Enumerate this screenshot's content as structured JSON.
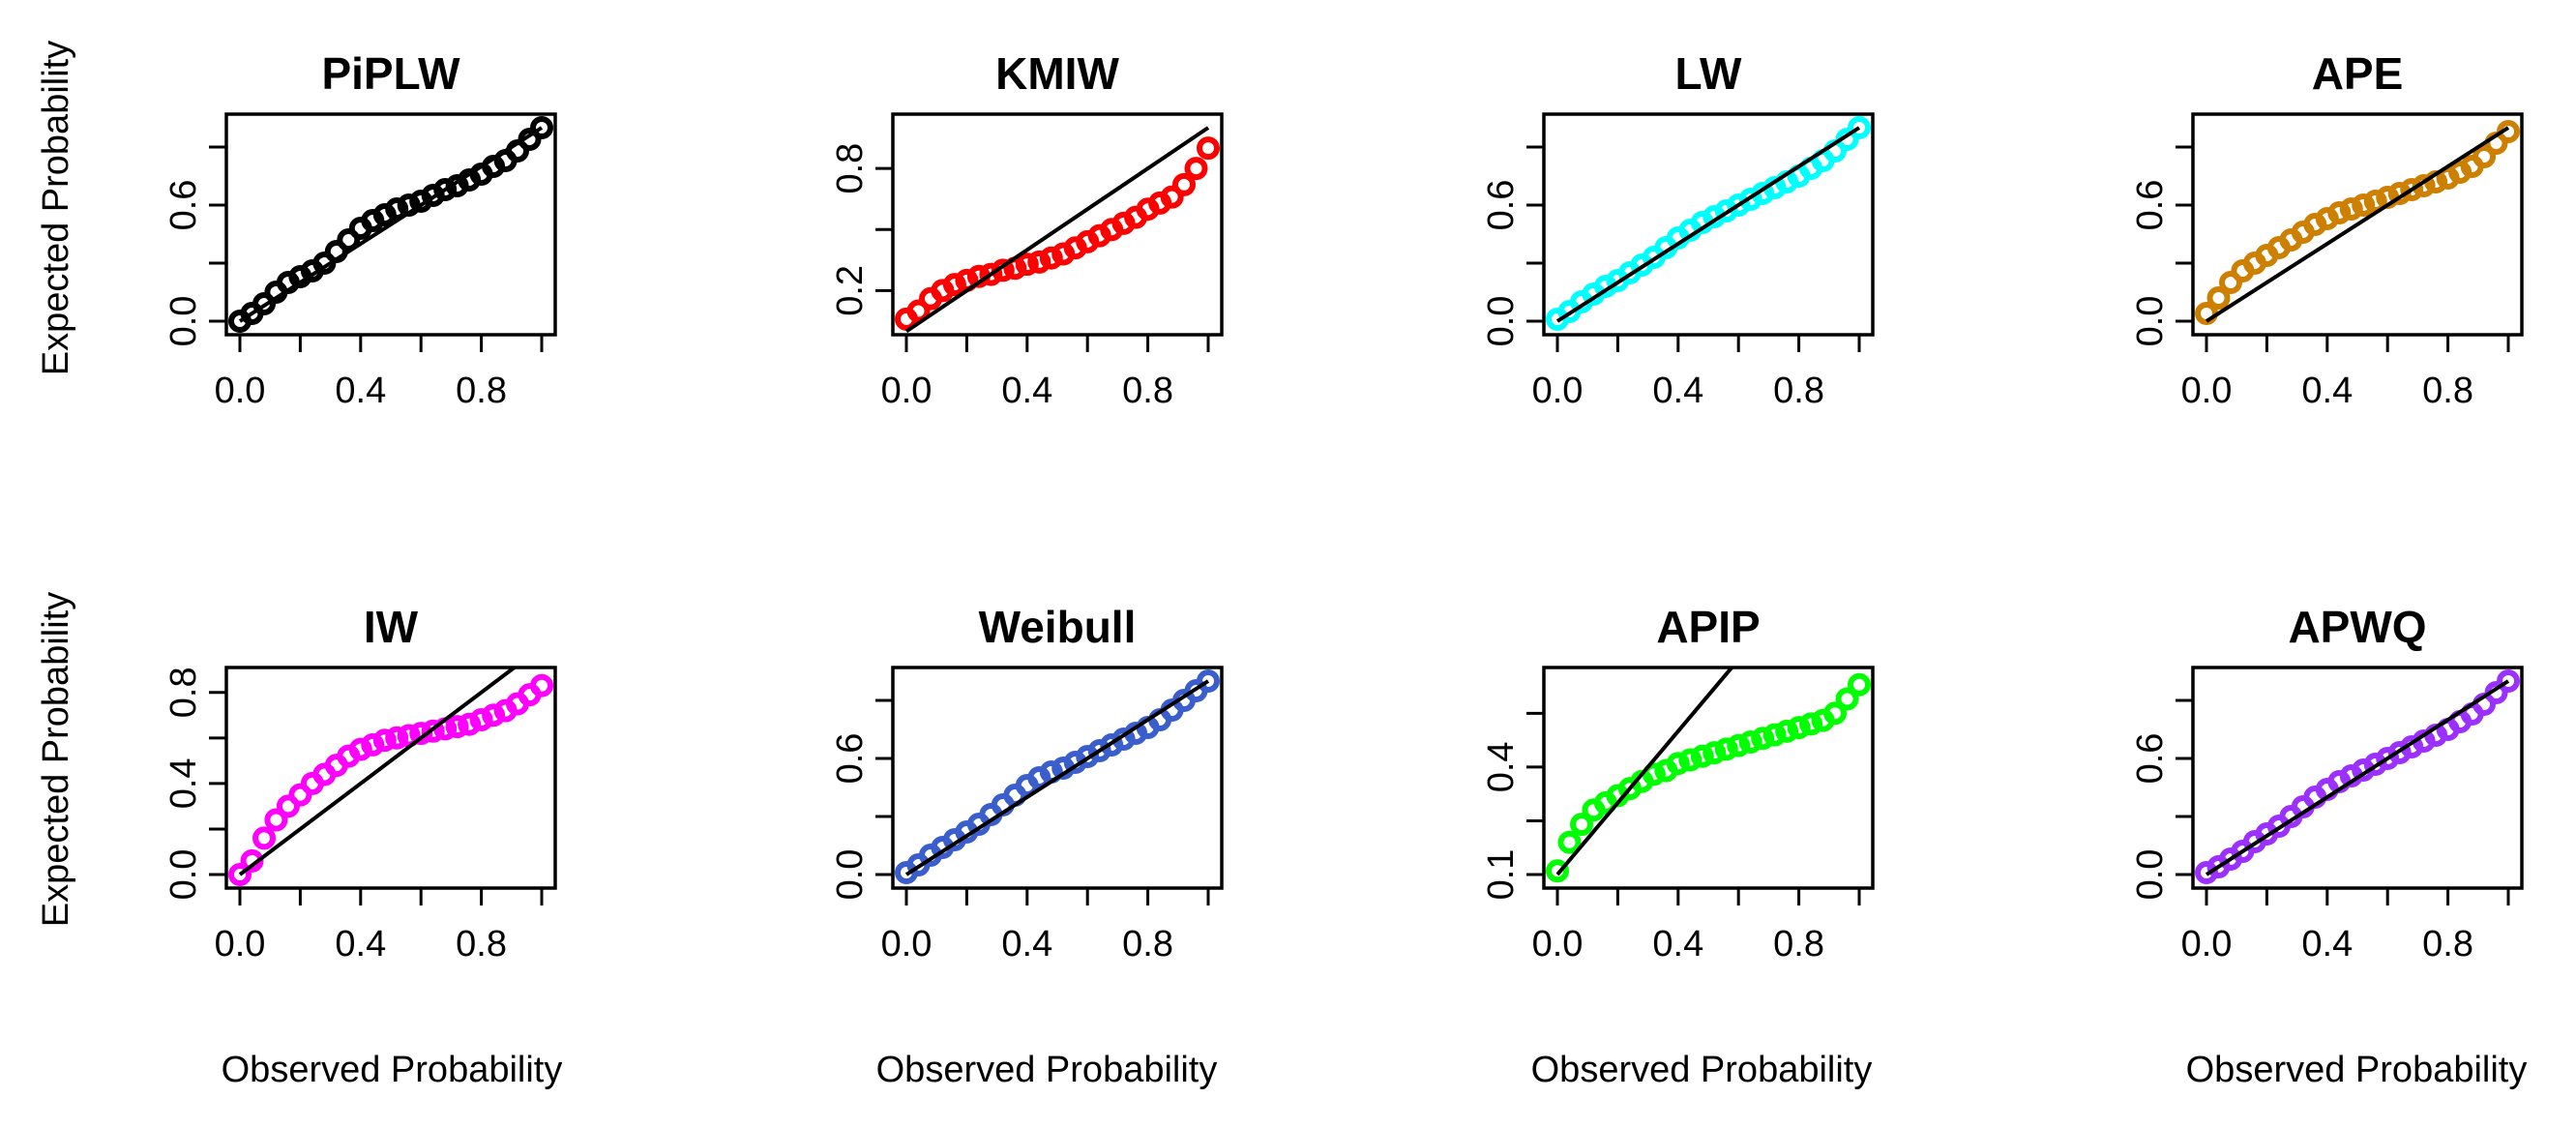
{
  "figure": {
    "ylabel": "Expected Probability",
    "xlabel": "Observed Probability"
  },
  "chart_data": [
    {
      "type": "scatter",
      "title": "PiPLW",
      "color": "#000000",
      "xlabel": "Observed Probability",
      "ylabel": "Expected Probability",
      "xlim": [
        0,
        1
      ],
      "ylim": [
        0,
        1
      ],
      "xticks": [
        "0.0",
        "0.4",
        "0.8"
      ],
      "yticks": [
        "0.0",
        "0.6"
      ],
      "x": [
        0.0,
        0.04,
        0.08,
        0.12,
        0.16,
        0.2,
        0.24,
        0.28,
        0.32,
        0.36,
        0.4,
        0.44,
        0.48,
        0.52,
        0.56,
        0.6,
        0.64,
        0.68,
        0.72,
        0.76,
        0.8,
        0.84,
        0.88,
        0.92,
        0.96,
        1.0
      ],
      "y": [
        0.0,
        0.04,
        0.09,
        0.15,
        0.2,
        0.23,
        0.26,
        0.3,
        0.36,
        0.42,
        0.48,
        0.52,
        0.55,
        0.58,
        0.6,
        0.62,
        0.65,
        0.68,
        0.7,
        0.73,
        0.76,
        0.8,
        0.83,
        0.88,
        0.94,
        1.0
      ],
      "reference_line": {
        "intercept": 0,
        "slope": 1
      }
    },
    {
      "type": "scatter",
      "title": "KMIW",
      "color": "#ff0000",
      "xlabel": "Observed Probability",
      "ylabel": "Expected Probability",
      "xlim": [
        0,
        1
      ],
      "ylim": [
        0.05,
        1
      ],
      "xticks": [
        "0.0",
        "0.4",
        "0.8"
      ],
      "yticks": [
        "0.2",
        "0.8"
      ],
      "x": [
        0.0,
        0.04,
        0.08,
        0.12,
        0.16,
        0.2,
        0.24,
        0.28,
        0.32,
        0.36,
        0.4,
        0.44,
        0.48,
        0.52,
        0.56,
        0.6,
        0.64,
        0.68,
        0.72,
        0.76,
        0.8,
        0.84,
        0.88,
        0.92,
        0.96,
        1.0
      ],
      "y": [
        0.06,
        0.1,
        0.16,
        0.2,
        0.23,
        0.25,
        0.27,
        0.28,
        0.3,
        0.31,
        0.33,
        0.34,
        0.36,
        0.38,
        0.41,
        0.44,
        0.47,
        0.5,
        0.53,
        0.56,
        0.6,
        0.63,
        0.66,
        0.72,
        0.8,
        0.9
      ],
      "reference_line": {
        "intercept": 0,
        "slope": 1
      }
    },
    {
      "type": "scatter",
      "title": "LW",
      "color": "#00ffff",
      "xlabel": "Observed Probability",
      "ylabel": "Expected Probability",
      "xlim": [
        0,
        1
      ],
      "ylim": [
        0,
        1
      ],
      "xticks": [
        "0.0",
        "0.4",
        "0.8"
      ],
      "yticks": [
        "0.0",
        "0.6"
      ],
      "x": [
        0.0,
        0.04,
        0.08,
        0.12,
        0.16,
        0.2,
        0.24,
        0.28,
        0.32,
        0.36,
        0.4,
        0.44,
        0.48,
        0.52,
        0.56,
        0.6,
        0.64,
        0.68,
        0.72,
        0.76,
        0.8,
        0.84,
        0.88,
        0.92,
        0.96,
        1.0
      ],
      "y": [
        0.01,
        0.05,
        0.1,
        0.14,
        0.18,
        0.21,
        0.25,
        0.29,
        0.33,
        0.38,
        0.43,
        0.47,
        0.51,
        0.54,
        0.57,
        0.6,
        0.63,
        0.66,
        0.69,
        0.72,
        0.75,
        0.79,
        0.83,
        0.88,
        0.94,
        1.0
      ],
      "reference_line": {
        "intercept": 0,
        "slope": 1
      }
    },
    {
      "type": "scatter",
      "title": "APE",
      "color": "#cd7f00",
      "xlabel": "Observed Probability",
      "ylabel": "Expected Probability",
      "xlim": [
        0,
        1
      ],
      "ylim": [
        0,
        1
      ],
      "xticks": [
        "0.0",
        "0.4",
        "0.8"
      ],
      "yticks": [
        "0.0",
        "0.6"
      ],
      "x": [
        0.0,
        0.04,
        0.08,
        0.12,
        0.16,
        0.2,
        0.24,
        0.28,
        0.32,
        0.36,
        0.4,
        0.44,
        0.48,
        0.52,
        0.56,
        0.6,
        0.64,
        0.68,
        0.72,
        0.76,
        0.8,
        0.84,
        0.88,
        0.92,
        0.96,
        1.0
      ],
      "y": [
        0.04,
        0.12,
        0.2,
        0.26,
        0.3,
        0.34,
        0.38,
        0.42,
        0.46,
        0.5,
        0.53,
        0.56,
        0.58,
        0.6,
        0.62,
        0.64,
        0.66,
        0.68,
        0.7,
        0.72,
        0.74,
        0.77,
        0.8,
        0.85,
        0.92,
        0.98
      ],
      "reference_line": {
        "intercept": 0,
        "slope": 1
      }
    },
    {
      "type": "scatter",
      "title": "IW",
      "color": "#ff00ff",
      "xlabel": "Observed Probability",
      "ylabel": "Expected Probability",
      "xlim": [
        0,
        1
      ],
      "ylim": [
        0,
        0.85
      ],
      "xticks": [
        "0.0",
        "0.4",
        "0.8"
      ],
      "yticks": [
        "0.0",
        "0.4",
        "0.8"
      ],
      "x": [
        0.0,
        0.04,
        0.08,
        0.12,
        0.16,
        0.2,
        0.24,
        0.28,
        0.32,
        0.36,
        0.4,
        0.44,
        0.48,
        0.52,
        0.56,
        0.6,
        0.64,
        0.68,
        0.72,
        0.76,
        0.8,
        0.84,
        0.88,
        0.92,
        0.96,
        1.0
      ],
      "y": [
        0.0,
        0.06,
        0.16,
        0.24,
        0.3,
        0.35,
        0.4,
        0.44,
        0.48,
        0.52,
        0.55,
        0.57,
        0.59,
        0.6,
        0.61,
        0.62,
        0.63,
        0.64,
        0.65,
        0.66,
        0.68,
        0.7,
        0.72,
        0.75,
        0.79,
        0.83
      ],
      "reference_line": {
        "intercept": 0,
        "slope": 1
      }
    },
    {
      "type": "scatter",
      "title": "Weibull",
      "color": "#3a5fcd",
      "xlabel": "Observed Probability",
      "ylabel": "Expected Probability",
      "xlim": [
        0,
        1
      ],
      "ylim": [
        0,
        1
      ],
      "xticks": [
        "0.0",
        "0.4",
        "0.8"
      ],
      "yticks": [
        "0.0",
        "0.6"
      ],
      "x": [
        0.0,
        0.04,
        0.08,
        0.12,
        0.16,
        0.2,
        0.24,
        0.28,
        0.32,
        0.36,
        0.4,
        0.44,
        0.48,
        0.52,
        0.56,
        0.6,
        0.64,
        0.68,
        0.72,
        0.76,
        0.8,
        0.84,
        0.88,
        0.92,
        0.96,
        1.0
      ],
      "y": [
        0.01,
        0.05,
        0.1,
        0.14,
        0.18,
        0.22,
        0.26,
        0.31,
        0.36,
        0.41,
        0.46,
        0.5,
        0.53,
        0.55,
        0.58,
        0.61,
        0.64,
        0.67,
        0.7,
        0.73,
        0.76,
        0.8,
        0.85,
        0.9,
        0.95,
        1.0
      ],
      "reference_line": {
        "intercept": 0,
        "slope": 1
      }
    },
    {
      "type": "scatter",
      "title": "APIP",
      "color": "#00ff00",
      "xlabel": "Observed Probability",
      "ylabel": "Expected Probability",
      "xlim": [
        0,
        1
      ],
      "ylim": [
        0.1,
        0.64
      ],
      "xticks": [
        "0.0",
        "0.4",
        "0.8"
      ],
      "yticks": [
        "0.1",
        "0.4"
      ],
      "x": [
        0.0,
        0.04,
        0.08,
        0.12,
        0.16,
        0.2,
        0.24,
        0.28,
        0.32,
        0.36,
        0.4,
        0.44,
        0.48,
        0.52,
        0.56,
        0.6,
        0.64,
        0.68,
        0.72,
        0.76,
        0.8,
        0.84,
        0.88,
        0.92,
        0.96,
        1.0
      ],
      "y": [
        0.11,
        0.19,
        0.24,
        0.28,
        0.3,
        0.32,
        0.34,
        0.36,
        0.38,
        0.39,
        0.41,
        0.42,
        0.43,
        0.44,
        0.45,
        0.46,
        0.47,
        0.48,
        0.49,
        0.5,
        0.51,
        0.52,
        0.53,
        0.55,
        0.59,
        0.63
      ],
      "reference_line": {
        "intercept": 0.1,
        "slope": 1
      }
    },
    {
      "type": "scatter",
      "title": "APWQ",
      "color": "#9b30ff",
      "xlabel": "Observed Probability",
      "ylabel": "Expected Probability",
      "xlim": [
        0,
        1
      ],
      "ylim": [
        0,
        1
      ],
      "xticks": [
        "0.0",
        "0.4",
        "0.8"
      ],
      "yticks": [
        "0.0",
        "0.6"
      ],
      "x": [
        0.0,
        0.04,
        0.08,
        0.12,
        0.16,
        0.2,
        0.24,
        0.28,
        0.32,
        0.36,
        0.4,
        0.44,
        0.48,
        0.52,
        0.56,
        0.6,
        0.64,
        0.68,
        0.72,
        0.76,
        0.8,
        0.84,
        0.88,
        0.92,
        0.96,
        1.0
      ],
      "y": [
        0.01,
        0.04,
        0.08,
        0.12,
        0.17,
        0.21,
        0.25,
        0.3,
        0.35,
        0.4,
        0.44,
        0.48,
        0.51,
        0.54,
        0.57,
        0.6,
        0.63,
        0.66,
        0.69,
        0.72,
        0.75,
        0.79,
        0.83,
        0.88,
        0.94,
        1.0
      ],
      "reference_line": {
        "intercept": 0,
        "slope": 1
      }
    }
  ]
}
